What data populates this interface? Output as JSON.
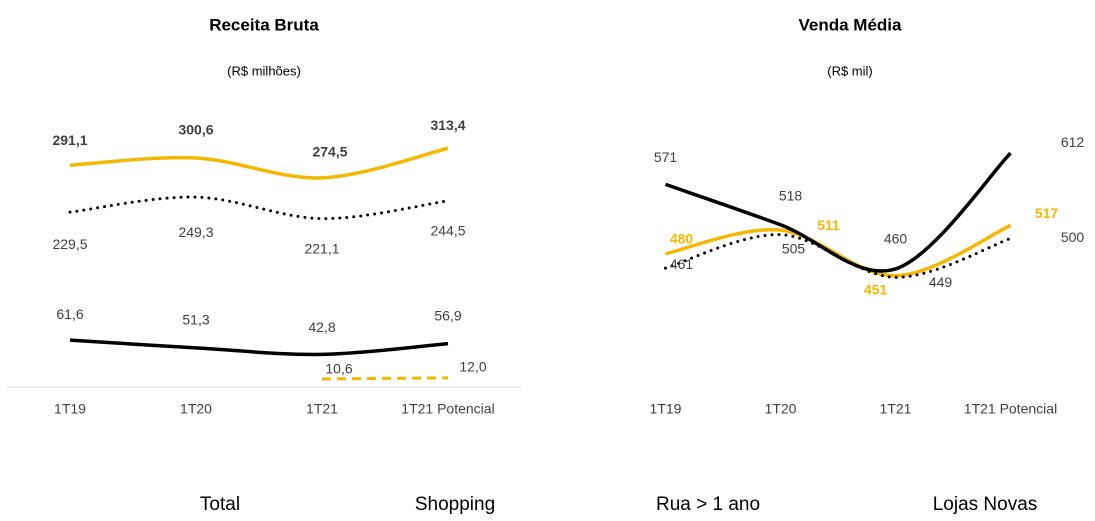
{
  "chart_data": [
    {
      "type": "line",
      "title": "Receita Bruta",
      "subtitle": "(R$ milhões)",
      "categories": [
        "1T19",
        "1T20",
        "1T21",
        "1T21 Potencial"
      ],
      "ylim": [
        0,
        340
      ],
      "axis_line": true,
      "series": [
        {
          "name": "Total",
          "color": "#f5b800",
          "style": "solid",
          "values": [
            291.1,
            300.6,
            274.5,
            313.4
          ],
          "value_labels": [
            "291,1",
            "300,6",
            "274,5",
            "313,4"
          ]
        },
        {
          "name": "Shopping",
          "color": "#000000",
          "style": "dotted",
          "values": [
            229.5,
            249.3,
            221.1,
            244.5
          ],
          "value_labels": [
            "229,5",
            "249,3",
            "221,1",
            "244,5"
          ]
        },
        {
          "name": "Rua > 1 ano",
          "color": "#000000",
          "style": "solid",
          "values": [
            61.6,
            51.3,
            42.8,
            56.9
          ],
          "value_labels": [
            "61,6",
            "51,3",
            "42,8",
            "56,9"
          ]
        },
        {
          "name": "Lojas Novas",
          "color": "#f5b800",
          "style": "dashed",
          "values": [
            null,
            null,
            10.6,
            12.0
          ],
          "value_labels": [
            null,
            null,
            "10,6",
            "12,0"
          ]
        }
      ]
    },
    {
      "type": "line",
      "title": "Venda Média",
      "subtitle": "(R$ mil)",
      "categories": [
        "1T19",
        "1T20",
        "1T21",
        "1T21 Potencial"
      ],
      "ylim": [
        305,
        645
      ],
      "axis_line": false,
      "series": [
        {
          "name": "Total",
          "color": "#f5b800",
          "style": "solid",
          "values": [
            480,
            511,
            451,
            517
          ]
        },
        {
          "name": "Shopping",
          "color": "#000000",
          "style": "dotted",
          "values": [
            461,
            505,
            449,
            500
          ]
        },
        {
          "name": "Rua > 1 ano",
          "color": "#000000",
          "style": "solid",
          "values": [
            571,
            518,
            460,
            612
          ]
        }
      ]
    }
  ]
}
